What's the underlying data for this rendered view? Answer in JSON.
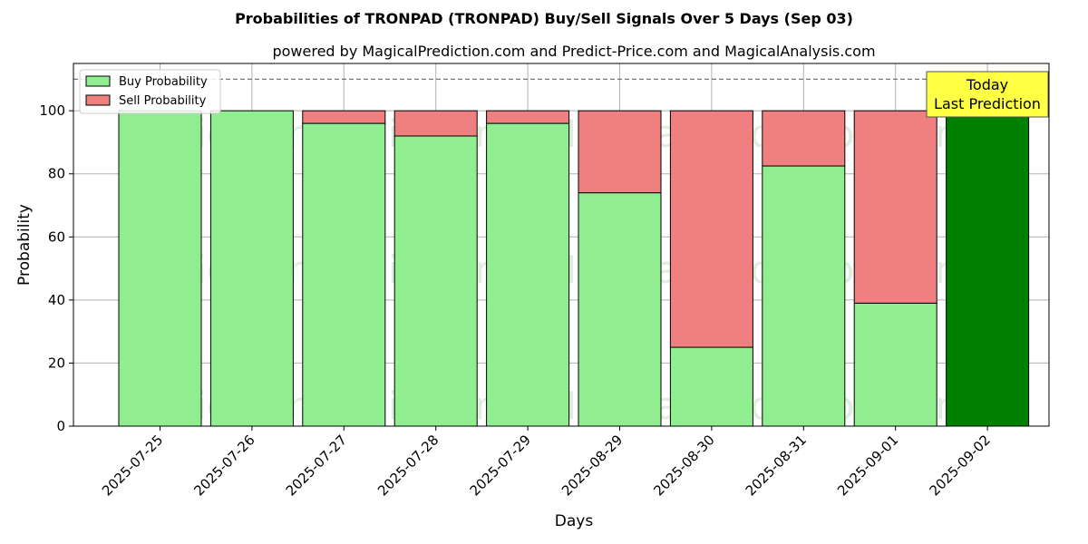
{
  "title": "Probabilities of TRONPAD (TRONPAD) Buy/Sell Signals Over 5 Days (Sep 03)",
  "subtitle": "powered by MagicalPrediction.com and Predict-Price.com and MagicalAnalysis.com",
  "watermarks": [
    "MagicalAnalysis.com",
    "MagicalPrediction.com"
  ],
  "today_box": {
    "line1": "Today",
    "line2": "Last Prediction"
  },
  "colors": {
    "buy": "#90ee90",
    "sell": "#f08080",
    "today_buy": "#008000",
    "today_box": "#ffff44"
  },
  "chart_data": {
    "type": "bar",
    "stacked": true,
    "categories": [
      "2025-07-25",
      "2025-07-26",
      "2025-07-27",
      "2025-07-28",
      "2025-07-29",
      "2025-08-29",
      "2025-08-30",
      "2025-08-31",
      "2025-09-01",
      "2025-09-02"
    ],
    "series": [
      {
        "name": "Buy Probability",
        "values": [
          100,
          100,
          96,
          92,
          96,
          74,
          25,
          82.5,
          39,
          100
        ]
      },
      {
        "name": "Sell Probability",
        "values": [
          0,
          0,
          4,
          8,
          4,
          26,
          75,
          17.5,
          61,
          0
        ]
      }
    ],
    "xlabel": "Days",
    "ylabel": "Probability",
    "ylim": [
      0,
      115
    ],
    "yticks": [
      0,
      20,
      40,
      60,
      80,
      100
    ],
    "reference_line": 110,
    "grid": true,
    "legend": "top-left"
  }
}
